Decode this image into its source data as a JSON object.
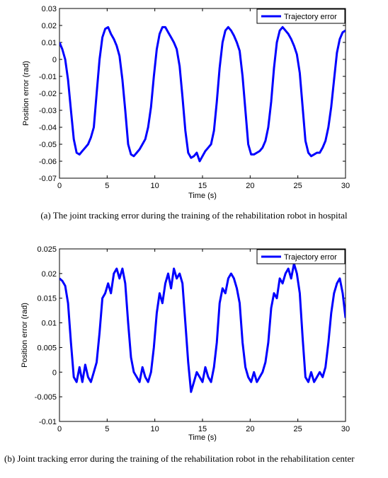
{
  "chart_data": [
    {
      "type": "line",
      "xlabel": "Time (s)",
      "ylabel": "Position error (rad)",
      "xlim": [
        0,
        30
      ],
      "ylim": [
        -0.07,
        0.03
      ],
      "xticks": [
        "0",
        "5",
        "10",
        "15",
        "20",
        "25",
        "30"
      ],
      "yticks": [
        "0.03",
        "0.02",
        "0.01",
        "0",
        "-0.01",
        "-0.02",
        "-0.03",
        "-0.04",
        "-0.05",
        "-0.06",
        "-0.07"
      ],
      "grid": false,
      "legend": "top-right",
      "series": [
        {
          "name": "Trajectory error",
          "color": "#0000ff",
          "x": [
            0,
            0.3,
            0.6,
            0.9,
            1.2,
            1.5,
            1.8,
            2.1,
            2.4,
            2.7,
            3.0,
            3.3,
            3.6,
            3.9,
            4.2,
            4.5,
            4.8,
            5.1,
            5.4,
            5.7,
            6.0,
            6.3,
            6.6,
            6.9,
            7.2,
            7.5,
            7.8,
            8.1,
            8.4,
            8.7,
            9.0,
            9.3,
            9.6,
            9.9,
            10.2,
            10.5,
            10.8,
            11.1,
            11.4,
            11.7,
            12.0,
            12.3,
            12.6,
            12.9,
            13.2,
            13.5,
            13.8,
            14.1,
            14.4,
            14.7,
            15.0,
            15.3,
            15.6,
            15.9,
            16.2,
            16.5,
            16.8,
            17.1,
            17.4,
            17.7,
            18.0,
            18.3,
            18.6,
            18.9,
            19.2,
            19.5,
            19.8,
            20.1,
            20.4,
            20.7,
            21.0,
            21.3,
            21.6,
            21.9,
            22.2,
            22.5,
            22.8,
            23.1,
            23.4,
            23.7,
            24.0,
            24.3,
            24.6,
            24.9,
            25.2,
            25.5,
            25.8,
            26.1,
            26.4,
            26.7,
            27.0,
            27.3,
            27.6,
            27.9,
            28.2,
            28.5,
            28.8,
            29.1,
            29.4,
            29.7,
            30.0
          ],
          "values": [
            0.01,
            0.006,
            0.0,
            -0.012,
            -0.03,
            -0.047,
            -0.055,
            -0.056,
            -0.054,
            -0.052,
            -0.05,
            -0.046,
            -0.04,
            -0.02,
            0.0,
            0.013,
            0.018,
            0.019,
            0.015,
            0.012,
            0.008,
            0.002,
            -0.012,
            -0.03,
            -0.05,
            -0.056,
            -0.057,
            -0.055,
            -0.053,
            -0.05,
            -0.047,
            -0.04,
            -0.028,
            -0.01,
            0.006,
            0.015,
            0.019,
            0.019,
            0.016,
            0.013,
            0.01,
            0.006,
            -0.004,
            -0.022,
            -0.042,
            -0.055,
            -0.058,
            -0.057,
            -0.055,
            -0.06,
            -0.057,
            -0.054,
            -0.052,
            -0.05,
            -0.042,
            -0.025,
            -0.005,
            0.01,
            0.017,
            0.019,
            0.017,
            0.014,
            0.01,
            0.005,
            -0.01,
            -0.03,
            -0.05,
            -0.056,
            -0.056,
            -0.055,
            -0.054,
            -0.052,
            -0.048,
            -0.04,
            -0.025,
            -0.005,
            0.01,
            0.017,
            0.019,
            0.017,
            0.015,
            0.012,
            0.008,
            0.003,
            -0.008,
            -0.028,
            -0.048,
            -0.055,
            -0.057,
            -0.056,
            -0.055,
            -0.055,
            -0.052,
            -0.048,
            -0.04,
            -0.028,
            -0.012,
            0.004,
            0.012,
            0.016,
            0.017
          ]
        }
      ],
      "caption": "(a)  The joint tracking error during the training of the rehabilitation robot in hospital"
    },
    {
      "type": "line",
      "xlabel": "Time (s)",
      "ylabel": "Position error (rad)",
      "xlim": [
        0,
        30
      ],
      "ylim": [
        -0.01,
        0.025
      ],
      "xticks": [
        "0",
        "5",
        "10",
        "15",
        "20",
        "25",
        "30"
      ],
      "yticks": [
        "0.025",
        "0.02",
        "0.015",
        "0.01",
        "0.005",
        "0",
        "-0.005",
        "-0.01"
      ],
      "grid": false,
      "legend": "top-right",
      "series": [
        {
          "name": "Trajectory error",
          "color": "#0000ff",
          "x": [
            0,
            0.3,
            0.6,
            0.9,
            1.2,
            1.5,
            1.8,
            2.1,
            2.4,
            2.7,
            3.0,
            3.3,
            3.6,
            3.9,
            4.2,
            4.5,
            4.8,
            5.1,
            5.4,
            5.7,
            6.0,
            6.3,
            6.6,
            6.9,
            7.2,
            7.5,
            7.8,
            8.1,
            8.4,
            8.7,
            9.0,
            9.3,
            9.6,
            9.9,
            10.2,
            10.5,
            10.8,
            11.1,
            11.4,
            11.7,
            12.0,
            12.3,
            12.6,
            12.9,
            13.2,
            13.5,
            13.8,
            14.1,
            14.4,
            14.7,
            15.0,
            15.3,
            15.6,
            15.9,
            16.2,
            16.5,
            16.8,
            17.1,
            17.4,
            17.7,
            18.0,
            18.3,
            18.6,
            18.9,
            19.2,
            19.5,
            19.8,
            20.1,
            20.4,
            20.7,
            21.0,
            21.3,
            21.6,
            21.9,
            22.2,
            22.5,
            22.8,
            23.1,
            23.4,
            23.7,
            24.0,
            24.3,
            24.6,
            24.9,
            25.2,
            25.5,
            25.8,
            26.1,
            26.4,
            26.7,
            27.0,
            27.3,
            27.6,
            27.9,
            28.2,
            28.5,
            28.8,
            29.1,
            29.4,
            29.7,
            30.0
          ],
          "values": [
            0.019,
            0.0185,
            0.0175,
            0.014,
            0.006,
            -0.001,
            -0.002,
            0.001,
            -0.002,
            0.0015,
            -0.001,
            -0.002,
            0.0,
            0.002,
            0.008,
            0.015,
            0.016,
            0.018,
            0.016,
            0.02,
            0.021,
            0.019,
            0.021,
            0.018,
            0.01,
            0.003,
            0.0,
            -0.001,
            -0.002,
            0.001,
            -0.001,
            -0.002,
            0.0,
            0.005,
            0.012,
            0.016,
            0.014,
            0.018,
            0.02,
            0.017,
            0.021,
            0.019,
            0.02,
            0.018,
            0.01,
            0.002,
            -0.004,
            -0.002,
            0.0,
            -0.001,
            -0.002,
            0.001,
            -0.001,
            -0.002,
            0.001,
            0.006,
            0.014,
            0.017,
            0.016,
            0.019,
            0.02,
            0.019,
            0.017,
            0.014,
            0.006,
            0.001,
            -0.001,
            -0.002,
            0.0,
            -0.002,
            -0.001,
            0.0,
            0.002,
            0.006,
            0.013,
            0.016,
            0.015,
            0.019,
            0.018,
            0.02,
            0.021,
            0.019,
            0.022,
            0.02,
            0.016,
            0.007,
            -0.001,
            -0.002,
            0.0,
            -0.002,
            -0.001,
            0.0,
            -0.001,
            0.001,
            0.006,
            0.012,
            0.016,
            0.018,
            0.019,
            0.016,
            0.011
          ]
        }
      ],
      "caption": "(b)  Joint tracking error during the training of the rehabilitation robot in the rehabilitation center"
    }
  ]
}
